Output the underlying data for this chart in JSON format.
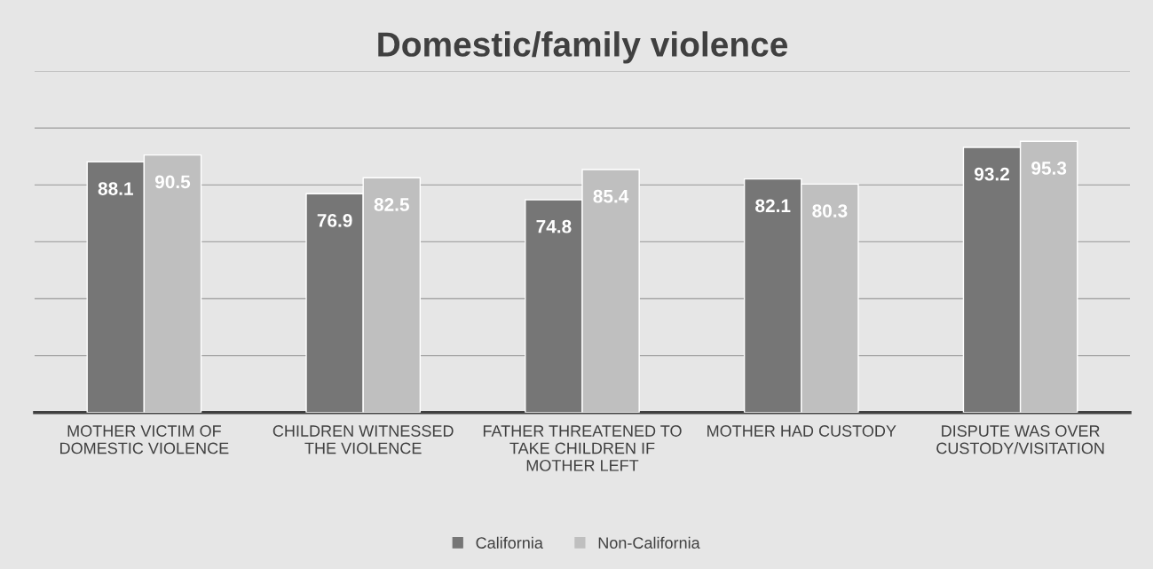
{
  "chart_data": {
    "type": "bar",
    "title": "Domestic/family violence",
    "categories": [
      "MOTHER VICTIM OF DOMESTIC VIOLENCE",
      "CHILDREN WITNESSED THE VIOLENCE",
      "FATHER THREATENED TO TAKE CHILDREN IF MOTHER LEFT",
      "MOTHER HAD CUSTODY",
      "DISPUTE WAS OVER CUSTODY/VISITATION"
    ],
    "series": [
      {
        "name": "California",
        "color": "#767676",
        "values": [
          88.1,
          76.9,
          74.8,
          82.1,
          93.2
        ]
      },
      {
        "name": "Non-California",
        "color": "#bfbfbf",
        "values": [
          90.5,
          82.5,
          85.4,
          80.3,
          95.3
        ]
      }
    ],
    "ylim": [
      0,
      120
    ],
    "yticks": [
      {
        "value": 0,
        "label": null
      },
      {
        "value": 20,
        "label": null
      },
      {
        "value": 40,
        "label": null
      },
      {
        "value": 60,
        "label": null
      },
      {
        "value": 80,
        "label": null
      },
      {
        "value": 100,
        "label": null
      },
      {
        "value": 120,
        "label": null
      }
    ],
    "grid": "y",
    "legend": "bottom",
    "data_labels": true
  }
}
